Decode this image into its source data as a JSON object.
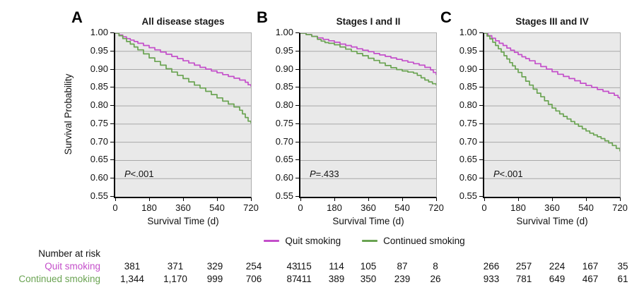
{
  "figure": {
    "ylabel": "Survival Probability",
    "legend": {
      "items": [
        {
          "label": "Quit smoking",
          "color": "#c44fca"
        },
        {
          "label": "Continued smoking",
          "color": "#6aa352"
        }
      ]
    },
    "at_risk": {
      "title": "Number at risk",
      "rows": [
        {
          "label": "Quit smoking",
          "color": "#c44fca",
          "values": [
            [
              "381",
              "371",
              "329",
              "254",
              "43"
            ],
            [
              "115",
              "114",
              "105",
              "87",
              "8"
            ],
            [
              "266",
              "257",
              "224",
              "167",
              "35"
            ]
          ]
        },
        {
          "label": "Continued smoking",
          "color": "#6aa352",
          "values": [
            [
              "1,344",
              "1,170",
              "999",
              "706",
              "87"
            ],
            [
              "411",
              "389",
              "350",
              "239",
              "26"
            ],
            [
              "933",
              "781",
              "649",
              "467",
              "61"
            ]
          ]
        }
      ]
    }
  },
  "chart_data": [
    {
      "type": "line",
      "panel": "A",
      "title": "All disease stages",
      "p_value": "P<.001",
      "xlabel": "Survival Time (d)",
      "ylabel": "Survival Probability",
      "xlim": [
        0,
        720
      ],
      "ylim": [
        0.55,
        1.0
      ],
      "xticks": [
        0,
        180,
        360,
        540,
        720
      ],
      "yticks": [
        1.0,
        0.95,
        0.9,
        0.85,
        0.8,
        0.75,
        0.7,
        0.65,
        0.6,
        0.55
      ],
      "grid": true,
      "legend_position": "below-figure",
      "series": [
        {
          "name": "Quit smoking",
          "color": "#c44fca",
          "points": [
            [
              0,
              1.0
            ],
            [
              20,
              0.995
            ],
            [
              40,
              0.99
            ],
            [
              60,
              0.985
            ],
            [
              80,
              0.981
            ],
            [
              100,
              0.977
            ],
            [
              120,
              0.972
            ],
            [
              150,
              0.966
            ],
            [
              180,
              0.96
            ],
            [
              210,
              0.954
            ],
            [
              240,
              0.948
            ],
            [
              270,
              0.942
            ],
            [
              300,
              0.936
            ],
            [
              330,
              0.93
            ],
            [
              360,
              0.924
            ],
            [
              390,
              0.918
            ],
            [
              420,
              0.912
            ],
            [
              450,
              0.906
            ],
            [
              480,
              0.901
            ],
            [
              510,
              0.896
            ],
            [
              540,
              0.891
            ],
            [
              570,
              0.886
            ],
            [
              600,
              0.881
            ],
            [
              630,
              0.876
            ],
            [
              660,
              0.871
            ],
            [
              690,
              0.865
            ],
            [
              705,
              0.858
            ],
            [
              720,
              0.853
            ]
          ]
        },
        {
          "name": "Continued smoking",
          "color": "#6aa352",
          "points": [
            [
              0,
              1.0
            ],
            [
              20,
              0.993
            ],
            [
              40,
              0.985
            ],
            [
              60,
              0.977
            ],
            [
              80,
              0.97
            ],
            [
              100,
              0.962
            ],
            [
              120,
              0.954
            ],
            [
              150,
              0.943
            ],
            [
              180,
              0.932
            ],
            [
              210,
              0.922
            ],
            [
              240,
              0.912
            ],
            [
              270,
              0.902
            ],
            [
              300,
              0.893
            ],
            [
              330,
              0.884
            ],
            [
              360,
              0.875
            ],
            [
              390,
              0.866
            ],
            [
              420,
              0.857
            ],
            [
              450,
              0.849
            ],
            [
              480,
              0.84
            ],
            [
              510,
              0.831
            ],
            [
              540,
              0.822
            ],
            [
              570,
              0.813
            ],
            [
              600,
              0.805
            ],
            [
              630,
              0.797
            ],
            [
              660,
              0.788
            ],
            [
              675,
              0.778
            ],
            [
              690,
              0.768
            ],
            [
              705,
              0.758
            ],
            [
              720,
              0.752
            ]
          ]
        }
      ]
    },
    {
      "type": "line",
      "panel": "B",
      "title": "Stages I and II",
      "p_value": "P=.433",
      "xlabel": "Survival Time (d)",
      "ylabel": "Survival Probability",
      "xlim": [
        0,
        720
      ],
      "ylim": [
        0.55,
        1.0
      ],
      "xticks": [
        0,
        180,
        360,
        540,
        720
      ],
      "yticks": [
        1.0,
        0.95,
        0.9,
        0.85,
        0.8,
        0.75,
        0.7,
        0.65,
        0.6,
        0.55
      ],
      "grid": true,
      "legend_position": "below-figure",
      "series": [
        {
          "name": "Quit smoking",
          "color": "#c44fca",
          "points": [
            [
              0,
              1.0
            ],
            [
              30,
              0.996
            ],
            [
              60,
              0.991
            ],
            [
              90,
              0.987
            ],
            [
              120,
              0.983
            ],
            [
              150,
              0.979
            ],
            [
              180,
              0.975
            ],
            [
              210,
              0.97
            ],
            [
              240,
              0.966
            ],
            [
              270,
              0.962
            ],
            [
              300,
              0.957
            ],
            [
              330,
              0.953
            ],
            [
              360,
              0.949
            ],
            [
              390,
              0.944
            ],
            [
              420,
              0.94
            ],
            [
              450,
              0.936
            ],
            [
              480,
              0.932
            ],
            [
              510,
              0.928
            ],
            [
              540,
              0.924
            ],
            [
              570,
              0.92
            ],
            [
              600,
              0.916
            ],
            [
              630,
              0.912
            ],
            [
              660,
              0.906
            ],
            [
              690,
              0.899
            ],
            [
              705,
              0.892
            ],
            [
              720,
              0.885
            ]
          ]
        },
        {
          "name": "Continued smoking",
          "color": "#6aa352",
          "points": [
            [
              0,
              1.0
            ],
            [
              30,
              0.996
            ],
            [
              60,
              0.991
            ],
            [
              90,
              0.983
            ],
            [
              110,
              0.978
            ],
            [
              130,
              0.974
            ],
            [
              150,
              0.972
            ],
            [
              180,
              0.968
            ],
            [
              210,
              0.962
            ],
            [
              240,
              0.956
            ],
            [
              270,
              0.95
            ],
            [
              300,
              0.944
            ],
            [
              330,
              0.938
            ],
            [
              360,
              0.931
            ],
            [
              390,
              0.925
            ],
            [
              420,
              0.918
            ],
            [
              450,
              0.911
            ],
            [
              480,
              0.905
            ],
            [
              510,
              0.9
            ],
            [
              540,
              0.896
            ],
            [
              570,
              0.893
            ],
            [
              600,
              0.89
            ],
            [
              620,
              0.884
            ],
            [
              640,
              0.877
            ],
            [
              660,
              0.871
            ],
            [
              680,
              0.866
            ],
            [
              700,
              0.861
            ],
            [
              720,
              0.856
            ]
          ]
        }
      ]
    },
    {
      "type": "line",
      "panel": "C",
      "title": "Stages III and IV",
      "p_value": "P<.001",
      "xlabel": "Survival Time (d)",
      "ylabel": "Survival Probability",
      "xlim": [
        0,
        720
      ],
      "ylim": [
        0.55,
        1.0
      ],
      "xticks": [
        0,
        180,
        360,
        540,
        720
      ],
      "yticks": [
        1.0,
        0.95,
        0.9,
        0.85,
        0.8,
        0.75,
        0.7,
        0.65,
        0.6,
        0.55
      ],
      "grid": true,
      "legend_position": "below-figure",
      "series": [
        {
          "name": "Quit smoking",
          "color": "#c44fca",
          "points": [
            [
              0,
              1.0
            ],
            [
              20,
              0.993
            ],
            [
              40,
              0.986
            ],
            [
              60,
              0.979
            ],
            [
              80,
              0.972
            ],
            [
              100,
              0.966
            ],
            [
              120,
              0.959
            ],
            [
              140,
              0.953
            ],
            [
              160,
              0.947
            ],
            [
              180,
              0.941
            ],
            [
              200,
              0.935
            ],
            [
              220,
              0.93
            ],
            [
              240,
              0.924
            ],
            [
              270,
              0.916
            ],
            [
              300,
              0.908
            ],
            [
              330,
              0.901
            ],
            [
              360,
              0.894
            ],
            [
              390,
              0.887
            ],
            [
              420,
              0.881
            ],
            [
              450,
              0.875
            ],
            [
              480,
              0.869
            ],
            [
              510,
              0.862
            ],
            [
              540,
              0.856
            ],
            [
              570,
              0.851
            ],
            [
              600,
              0.845
            ],
            [
              630,
              0.84
            ],
            [
              660,
              0.835
            ],
            [
              690,
              0.829
            ],
            [
              710,
              0.823
            ],
            [
              720,
              0.818
            ]
          ]
        },
        {
          "name": "Continued smoking",
          "color": "#6aa352",
          "points": [
            [
              0,
              1.0
            ],
            [
              15,
              0.992
            ],
            [
              30,
              0.984
            ],
            [
              45,
              0.975
            ],
            [
              60,
              0.966
            ],
            [
              75,
              0.957
            ],
            [
              90,
              0.948
            ],
            [
              105,
              0.938
            ],
            [
              120,
              0.929
            ],
            [
              135,
              0.919
            ],
            [
              150,
              0.91
            ],
            [
              165,
              0.901
            ],
            [
              180,
              0.892
            ],
            [
              200,
              0.88
            ],
            [
              220,
              0.868
            ],
            [
              240,
              0.857
            ],
            [
              260,
              0.846
            ],
            [
              280,
              0.835
            ],
            [
              300,
              0.825
            ],
            [
              320,
              0.814
            ],
            [
              340,
              0.804
            ],
            [
              360,
              0.794
            ],
            [
              380,
              0.786
            ],
            [
              400,
              0.778
            ],
            [
              420,
              0.771
            ],
            [
              440,
              0.764
            ],
            [
              460,
              0.757
            ],
            [
              480,
              0.75
            ],
            [
              500,
              0.744
            ],
            [
              520,
              0.737
            ],
            [
              540,
              0.731
            ],
            [
              560,
              0.725
            ],
            [
              580,
              0.72
            ],
            [
              600,
              0.715
            ],
            [
              620,
              0.71
            ],
            [
              640,
              0.704
            ],
            [
              660,
              0.698
            ],
            [
              680,
              0.691
            ],
            [
              700,
              0.683
            ],
            [
              720,
              0.675
            ]
          ]
        }
      ]
    }
  ]
}
